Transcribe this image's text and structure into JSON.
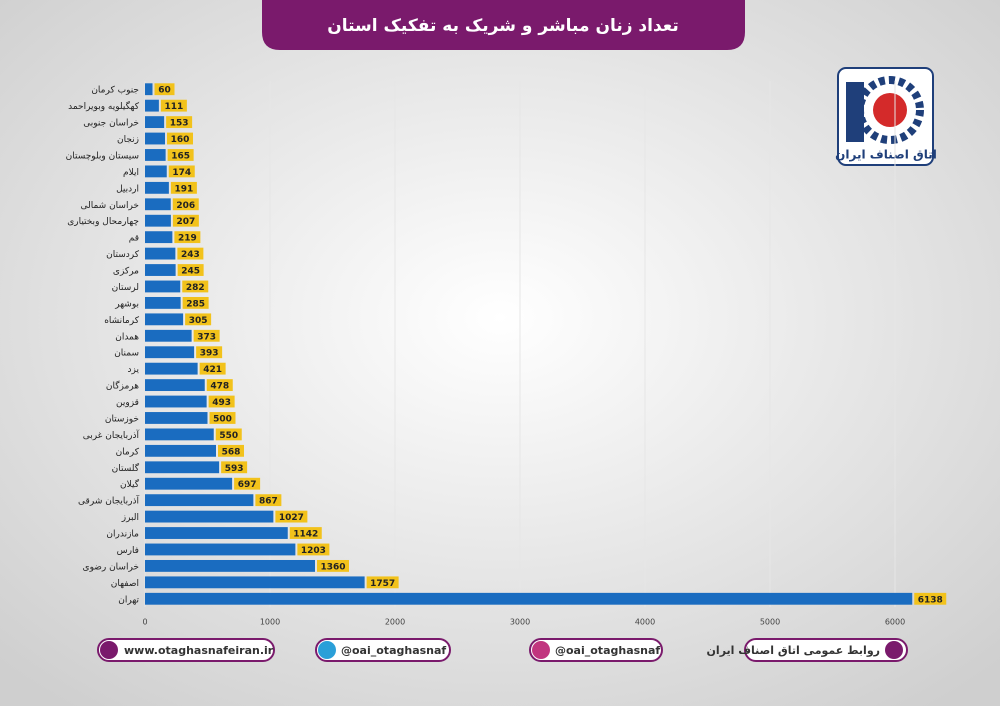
{
  "chart_data": {
    "type": "bar",
    "orientation": "horizontal",
    "title": "تعداد زنان مباشر و شریک به تفکیک استان",
    "categories": [
      "جنوب کرمان",
      "کهگیلویه وبویراحمد",
      "خراسان جنوبی",
      "زنجان",
      "سیستان وبلوچستان",
      "ایلام",
      "اردبیل",
      "خراسان شمالی",
      "چهارمحال وبختیاری",
      "قم",
      "کردستان",
      "مرکزی",
      "لرستان",
      "بوشهر",
      "کرمانشاه",
      "همدان",
      "سمنان",
      "یزد",
      "هرمزگان",
      "قزوین",
      "خوزستان",
      "آذربایجان غربی",
      "کرمان",
      "گلستان",
      "گیلان",
      "آذربایجان شرقی",
      "البرز",
      "مازندران",
      "فارس",
      "خراسان رضوی",
      "اصفهان",
      "تهران"
    ],
    "values": [
      60,
      111,
      153,
      160,
      165,
      174,
      191,
      206,
      207,
      219,
      243,
      245,
      282,
      285,
      305,
      373,
      393,
      421,
      478,
      493,
      500,
      550,
      568,
      593,
      697,
      867,
      1027,
      1142,
      1203,
      1360,
      1757,
      6138
    ],
    "color": "#1a6cc0",
    "label_color": "#f2c21b",
    "xlim": [
      0,
      6400
    ],
    "xticks": [
      0,
      1000,
      2000,
      3000,
      4000,
      5000,
      6000
    ],
    "grid": true
  },
  "logo": {
    "text": "اتاق اصناف ایران"
  },
  "footer": {
    "website": "www.otaghasnafeiran.ir",
    "telegram": "@oai_otaghasnaf",
    "instagram": "@oai_otaghasnaf",
    "credit": "روابط عمومی اتاق اصناف ایران"
  }
}
